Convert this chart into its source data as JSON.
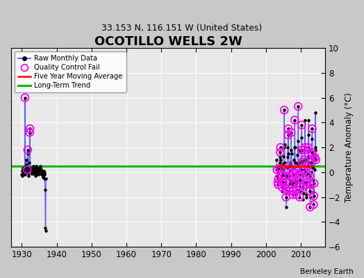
{
  "title": "OCOTILLO WELLS 2W",
  "subtitle": "33.153 N, 116.151 W (United States)",
  "ylabel": "Temperature Anomaly (°C)",
  "credit": "Berkeley Earth",
  "xlim": [
    1927,
    2017
  ],
  "ylim": [
    -6,
    10
  ],
  "yticks": [
    -6,
    -4,
    -2,
    0,
    2,
    4,
    6,
    8,
    10
  ],
  "xticks": [
    1930,
    1940,
    1950,
    1960,
    1970,
    1980,
    1990,
    2000,
    2010
  ],
  "long_term_trend_y": 0.5,
  "bg_color": "#e8e8e8",
  "plot_bg_color": "#e8e8e8",
  "outer_bg_color": "#c8c8c8",
  "early_years_start": 1930,
  "early_years_end": 1937,
  "modern_years_start": 2003,
  "modern_years_end": 2014,
  "early_values": [
    -0.2,
    -0.3,
    0.1,
    0.3,
    0.2,
    -0.1,
    -0.2,
    0.0,
    0.1,
    -0.1,
    -0.2,
    6.0,
    0.0,
    0.4,
    0.5,
    1.0,
    0.6,
    0.1,
    0.0,
    0.2,
    1.8,
    1.5,
    0.3,
    -0.3,
    -0.1,
    0.2,
    0.8,
    3.2,
    3.5,
    0.3,
    0.2,
    0.3,
    0.2,
    0.1,
    0.0,
    -0.1,
    0.1,
    0.2,
    0.4,
    0.5,
    0.1,
    0.0,
    -0.1,
    0.2,
    0.3,
    0.1,
    0.0,
    -0.3,
    0.2,
    0.4,
    0.5,
    0.4,
    0.3,
    0.1,
    0.0,
    -0.1,
    -0.2,
    -0.1,
    0.2,
    0.1,
    0.3,
    0.2,
    0.1,
    0.5,
    0.4,
    0.2,
    0.1,
    -0.1,
    -0.2,
    -0.1,
    0.1,
    -0.2,
    -0.3,
    -0.3,
    -0.4,
    -0.1,
    0.1,
    0.0,
    -0.2,
    -0.5,
    -1.4,
    -4.5,
    -4.7,
    -0.5
  ],
  "early_qc_indices": [
    11,
    27,
    28,
    19,
    20
  ],
  "modern_values": [
    1.0,
    0.5,
    0.2,
    -0.3,
    -0.5,
    -0.8,
    -1.0,
    -0.5,
    0.0,
    0.3,
    0.6,
    0.8,
    1.2,
    1.6,
    2.0,
    1.0,
    0.3,
    -0.3,
    -0.8,
    -1.2,
    -1.5,
    -0.8,
    -0.2,
    0.2,
    0.7,
    1.3,
    2.0,
    5.0,
    2.2,
    0.8,
    -0.3,
    -0.8,
    -1.3,
    -2.0,
    -2.8,
    -1.5,
    -0.3,
    0.4,
    1.2,
    2.0,
    3.0,
    3.5,
    1.5,
    0.5,
    -0.3,
    -0.9,
    -1.5,
    -0.7,
    0.1,
    0.8,
    1.8,
    3.2,
    1.5,
    0.5,
    -0.3,
    -1.0,
    -1.8,
    -1.5,
    -0.8,
    -0.1,
    0.4,
    1.0,
    2.0,
    4.2,
    2.0,
    0.8,
    -0.1,
    -0.9,
    -1.8,
    -1.4,
    -0.7,
    0.1,
    0.7,
    1.4,
    2.5,
    5.3,
    1.8,
    0.7,
    -0.2,
    -1.1,
    -2.0,
    -1.5,
    -0.6,
    0.2,
    0.9,
    1.7,
    2.8,
    3.8,
    1.8,
    0.8,
    -0.2,
    -1.2,
    -2.2,
    -1.7,
    -0.8,
    0.2,
    1.0,
    1.8,
    4.2,
    2.0,
    1.0,
    0.0,
    -1.0,
    -2.0,
    -1.8,
    -0.8,
    -0.1,
    0.5,
    1.2,
    2.0,
    3.0,
    4.2,
    1.8,
    0.8,
    -0.3,
    -1.5,
    -2.8,
    -2.0,
    -1.0,
    0.0,
    0.8,
    1.6,
    2.7,
    3.5,
    1.4,
    0.4,
    -0.6,
    -1.6,
    -2.6,
    -1.9,
    -0.9,
    0.2,
    1.2,
    2.0,
    4.8,
    1.8,
    1.0,
    0.2,
    -0.5,
    -1.3,
    -2.1,
    -1.5,
    -0.5,
    0.3,
    4.5,
    4.3,
    0.9,
    -0.1,
    -1.0
  ],
  "modern_qc_indices": [
    2,
    5,
    6,
    7,
    9,
    13,
    14,
    16,
    17,
    18,
    19,
    21,
    27,
    30,
    31,
    32,
    33,
    35,
    40,
    41,
    43,
    44,
    46,
    51,
    54,
    55,
    56,
    57,
    59,
    63,
    66,
    67,
    68,
    69,
    71,
    75,
    78,
    79,
    80,
    82,
    87,
    88,
    89,
    91,
    95,
    96,
    97,
    99,
    102,
    105,
    106,
    107,
    109,
    114,
    115,
    116,
    118,
    120,
    121,
    123,
    124,
    128,
    129,
    130,
    132,
    136,
    140,
    141,
    142,
    144
  ],
  "five_yr_avg_x": [
    2003.5,
    2004.0,
    2004.5,
    2005.0,
    2005.5,
    2006.0,
    2006.5,
    2007.0,
    2007.5,
    2008.0,
    2008.5,
    2009.0,
    2009.5,
    2010.0,
    2010.5,
    2011.0,
    2011.5,
    2012.0,
    2012.5,
    2013.0,
    2013.5
  ],
  "five_yr_avg_y": [
    0.4,
    0.5,
    0.6,
    0.5,
    0.4,
    0.5,
    0.4,
    0.5,
    0.5,
    0.4,
    0.5,
    0.4,
    0.5,
    0.4,
    0.5,
    0.4,
    0.5,
    0.4,
    0.4,
    0.5,
    0.5
  ]
}
